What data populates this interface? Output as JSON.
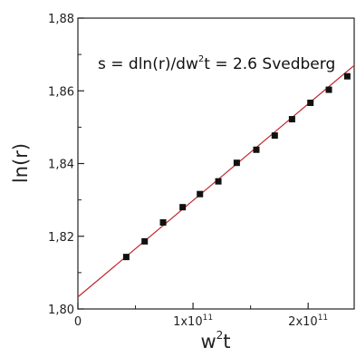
{
  "chart_data": {
    "type": "scatter",
    "xlabel": "w",
    "xlabel_sup": "2",
    "xlabel_tail": "t",
    "ylabel": "ln(r)",
    "xlim": [
      0,
      240000000000.0
    ],
    "ylim": [
      1.8,
      1.88
    ],
    "x_ticks": [
      {
        "value": 0,
        "label": "0",
        "exp": ""
      },
      {
        "value": 100000000000.0,
        "label": "1x10",
        "exp": "11"
      },
      {
        "value": 200000000000.0,
        "label": "2x10",
        "exp": "11"
      }
    ],
    "y_ticks": [
      {
        "value": 1.8,
        "label": "1,80"
      },
      {
        "value": 1.82,
        "label": "1,82"
      },
      {
        "value": 1.84,
        "label": "1,84"
      },
      {
        "value": 1.86,
        "label": "1,86"
      },
      {
        "value": 1.88,
        "label": "1,88"
      }
    ],
    "points": [
      {
        "x": 42000000000.0,
        "y": 1.8143
      },
      {
        "x": 58000000000.0,
        "y": 1.8186
      },
      {
        "x": 74000000000.0,
        "y": 1.8238
      },
      {
        "x": 91000000000.0,
        "y": 1.828
      },
      {
        "x": 106000000000.0,
        "y": 1.8316
      },
      {
        "x": 122000000000.0,
        "y": 1.8351
      },
      {
        "x": 138000000000.0,
        "y": 1.8402
      },
      {
        "x": 155000000000.0,
        "y": 1.8438
      },
      {
        "x": 171000000000.0,
        "y": 1.8477
      },
      {
        "x": 186000000000.0,
        "y": 1.8522
      },
      {
        "x": 202000000000.0,
        "y": 1.8567
      },
      {
        "x": 218000000000.0,
        "y": 1.8603
      },
      {
        "x": 234000000000.0,
        "y": 1.864
      }
    ],
    "fit_line": {
      "x": [
        0,
        240000000000.0
      ],
      "y": [
        1.8033,
        1.867
      ]
    },
    "annotation": {
      "prefix": "s = dln(r)/dw",
      "sup": "2",
      "suffix": "t = 2.6 Svedberg"
    },
    "grid": false,
    "legend": "none",
    "colors": {
      "points": "#111111",
      "fit_line": "#c0272d",
      "axes": "#222222"
    }
  }
}
